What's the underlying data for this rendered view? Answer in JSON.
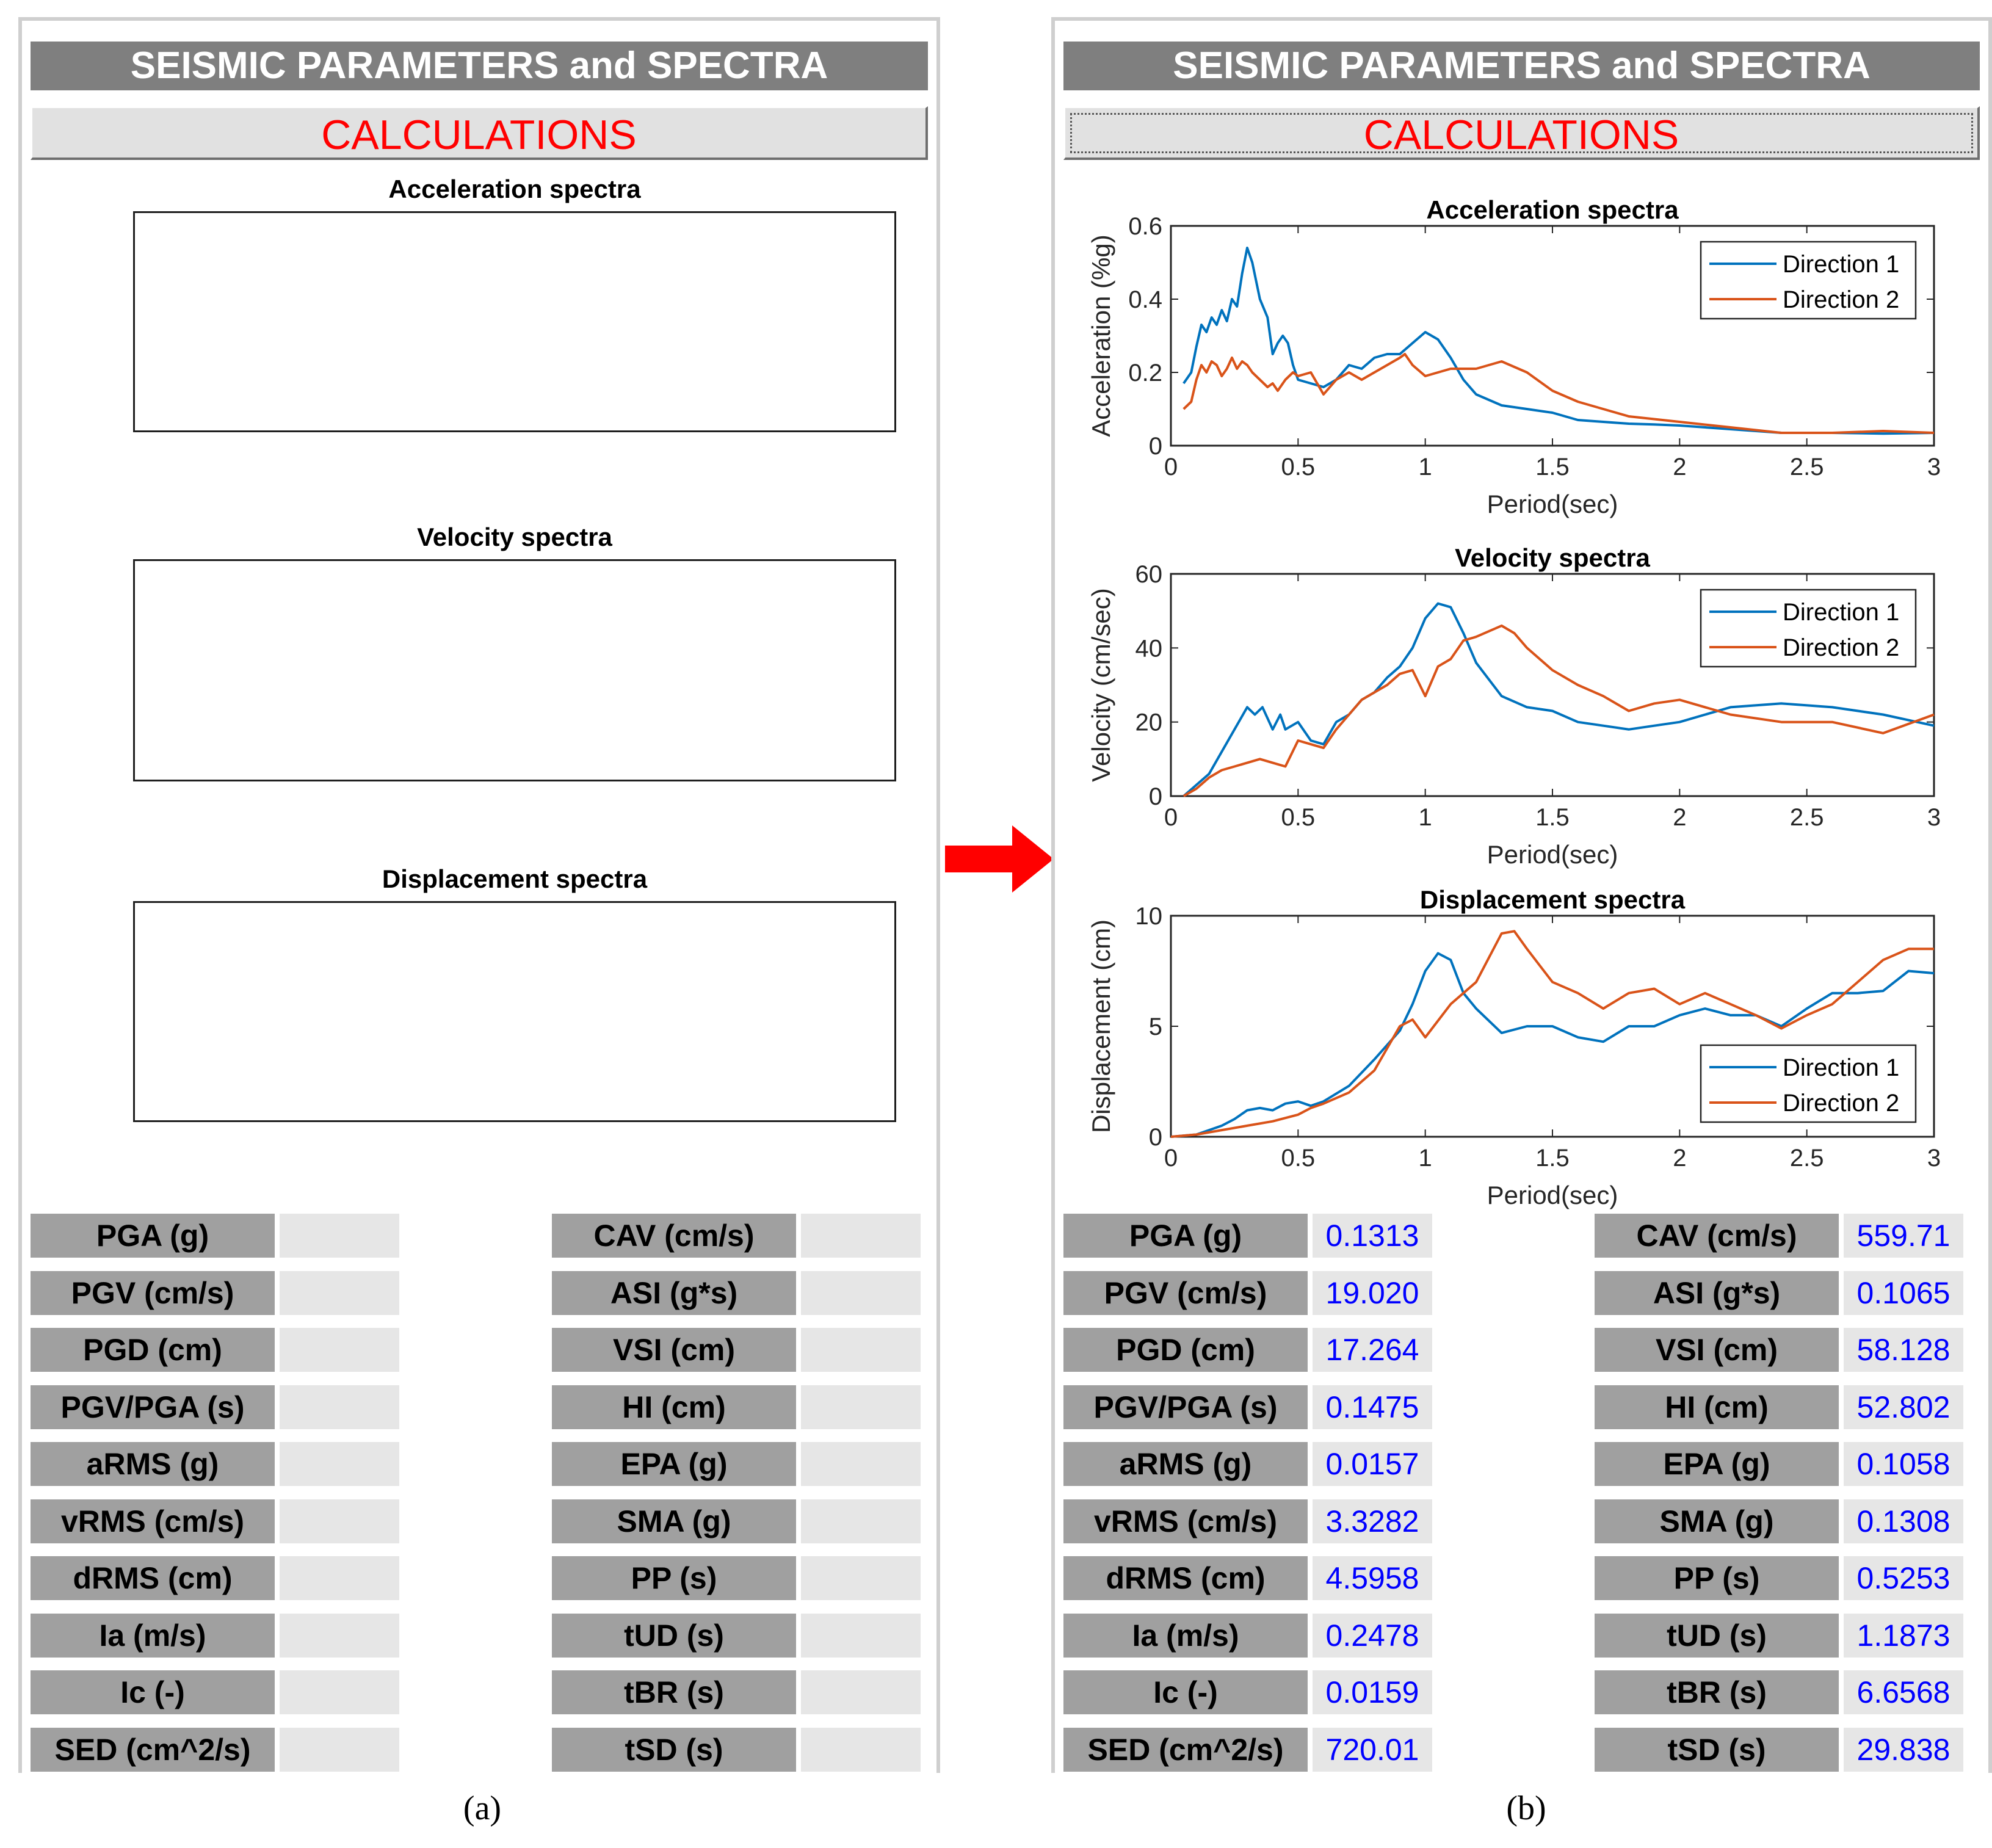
{
  "title": "SEISMIC PARAMETERS and SPECTRA",
  "calculate_label": "CALCULATIONS",
  "plots": [
    {
      "title": "Acceleration spectra"
    },
    {
      "title": "Velocity spectra"
    },
    {
      "title": "Displacement spectra"
    }
  ],
  "params_left": [
    {
      "label": "PGA (g)",
      "value": "0.1313"
    },
    {
      "label": "PGV (cm/s)",
      "value": "19.020"
    },
    {
      "label": "PGD (cm)",
      "value": "17.264"
    },
    {
      "label": "PGV/PGA (s)",
      "value": "0.1475"
    },
    {
      "label": "aRMS (g)",
      "value": "0.0157"
    },
    {
      "label": "vRMS (cm/s)",
      "value": "3.3282"
    },
    {
      "label": "dRMS (cm)",
      "value": "4.5958"
    },
    {
      "label": "Ia (m/s)",
      "value": "0.2478"
    },
    {
      "label": "Ic (-)",
      "value": "0.0159"
    },
    {
      "label": "SED (cm^2/s)",
      "value": "720.01"
    }
  ],
  "params_right": [
    {
      "label": "CAV (cm/s)",
      "value": "559.71"
    },
    {
      "label": "ASI (g*s)",
      "value": "0.1065"
    },
    {
      "label": "VSI (cm)",
      "value": "58.128"
    },
    {
      "label": "HI (cm)",
      "value": "52.802"
    },
    {
      "label": "EPA (g)",
      "value": "0.1058"
    },
    {
      "label": "SMA (g)",
      "value": "0.1308"
    },
    {
      "label": "PP (s)",
      "value": "0.5253"
    },
    {
      "label": "tUD (s)",
      "value": "1.1873"
    },
    {
      "label": "tBR (s)",
      "value": "6.6568"
    },
    {
      "label": "tSD (s)",
      "value": "29.838"
    }
  ],
  "captions": {
    "a": "(a)",
    "b": "(b)"
  },
  "colors": {
    "direction1": "#0072bd",
    "direction2": "#d95319",
    "arrow": "#ff0000"
  },
  "chart_data": [
    {
      "type": "line",
      "title": "Acceleration spectra",
      "xlabel": "Period(sec)",
      "ylabel": "Acceleration (%g)",
      "xlim": [
        0,
        3
      ],
      "ylim": [
        0,
        0.6
      ],
      "xticks": [
        "0",
        "0.5",
        "1",
        "1.5",
        "2",
        "2.5",
        "3"
      ],
      "yticks": [
        "0",
        "0.2",
        "0.4",
        "0.6"
      ],
      "legend": "top-right",
      "series": [
        {
          "name": "Direction 1",
          "x": [
            0.05,
            0.08,
            0.1,
            0.12,
            0.14,
            0.16,
            0.18,
            0.2,
            0.22,
            0.24,
            0.26,
            0.28,
            0.3,
            0.32,
            0.35,
            0.38,
            0.4,
            0.42,
            0.44,
            0.46,
            0.48,
            0.5,
            0.55,
            0.6,
            0.65,
            0.7,
            0.75,
            0.8,
            0.85,
            0.9,
            0.95,
            1.0,
            1.05,
            1.1,
            1.15,
            1.2,
            1.3,
            1.4,
            1.5,
            1.6,
            1.7,
            1.8,
            1.9,
            2.0,
            2.2,
            2.4,
            2.6,
            2.8,
            3.0
          ],
          "y": [
            0.17,
            0.2,
            0.27,
            0.33,
            0.31,
            0.35,
            0.33,
            0.37,
            0.34,
            0.4,
            0.38,
            0.47,
            0.54,
            0.5,
            0.4,
            0.35,
            0.25,
            0.28,
            0.3,
            0.28,
            0.22,
            0.18,
            0.17,
            0.16,
            0.18,
            0.22,
            0.21,
            0.24,
            0.25,
            0.25,
            0.28,
            0.31,
            0.29,
            0.24,
            0.18,
            0.14,
            0.11,
            0.1,
            0.09,
            0.07,
            0.065,
            0.06,
            0.058,
            0.055,
            0.045,
            0.035,
            0.035,
            0.033,
            0.035
          ]
        },
        {
          "name": "Direction 2",
          "x": [
            0.05,
            0.08,
            0.1,
            0.12,
            0.14,
            0.16,
            0.18,
            0.2,
            0.22,
            0.24,
            0.26,
            0.28,
            0.3,
            0.32,
            0.35,
            0.38,
            0.4,
            0.42,
            0.45,
            0.48,
            0.5,
            0.55,
            0.6,
            0.65,
            0.7,
            0.75,
            0.8,
            0.85,
            0.9,
            0.92,
            0.95,
            1.0,
            1.05,
            1.1,
            1.15,
            1.2,
            1.25,
            1.3,
            1.4,
            1.5,
            1.6,
            1.7,
            1.8,
            2.0,
            2.2,
            2.4,
            2.6,
            2.8,
            3.0
          ],
          "y": [
            0.1,
            0.12,
            0.18,
            0.22,
            0.2,
            0.23,
            0.22,
            0.19,
            0.21,
            0.24,
            0.21,
            0.23,
            0.22,
            0.2,
            0.18,
            0.16,
            0.17,
            0.15,
            0.18,
            0.2,
            0.19,
            0.2,
            0.14,
            0.18,
            0.2,
            0.18,
            0.2,
            0.22,
            0.24,
            0.25,
            0.22,
            0.19,
            0.2,
            0.21,
            0.21,
            0.21,
            0.22,
            0.23,
            0.2,
            0.15,
            0.12,
            0.1,
            0.08,
            0.065,
            0.05,
            0.035,
            0.035,
            0.04,
            0.035
          ]
        }
      ]
    },
    {
      "type": "line",
      "title": "Velocity spectra",
      "xlabel": "Period(sec)",
      "ylabel": "Velocity (cm/sec)",
      "xlim": [
        0,
        3
      ],
      "ylim": [
        0,
        60
      ],
      "xticks": [
        "0",
        "0.5",
        "1",
        "1.5",
        "2",
        "2.5",
        "3"
      ],
      "yticks": [
        "0",
        "20",
        "40",
        "60"
      ],
      "legend": "top-right",
      "series": [
        {
          "name": "Direction 1",
          "x": [
            0.05,
            0.1,
            0.15,
            0.2,
            0.25,
            0.3,
            0.33,
            0.36,
            0.4,
            0.43,
            0.45,
            0.5,
            0.55,
            0.6,
            0.65,
            0.7,
            0.75,
            0.8,
            0.85,
            0.9,
            0.95,
            1.0,
            1.05,
            1.1,
            1.15,
            1.2,
            1.3,
            1.4,
            1.5,
            1.6,
            1.7,
            1.8,
            1.9,
            2.0,
            2.2,
            2.4,
            2.6,
            2.8,
            3.0
          ],
          "y": [
            0,
            3,
            6,
            12,
            18,
            24,
            22,
            24,
            18,
            22,
            18,
            20,
            15,
            14,
            20,
            22,
            26,
            28,
            32,
            35,
            40,
            48,
            52,
            51,
            44,
            36,
            27,
            24,
            23,
            20,
            19,
            18,
            19,
            20,
            24,
            25,
            24,
            22,
            19
          ]
        },
        {
          "name": "Direction 2",
          "x": [
            0.05,
            0.1,
            0.15,
            0.2,
            0.25,
            0.3,
            0.35,
            0.4,
            0.45,
            0.5,
            0.55,
            0.6,
            0.65,
            0.7,
            0.75,
            0.8,
            0.85,
            0.9,
            0.95,
            1.0,
            1.05,
            1.1,
            1.15,
            1.2,
            1.3,
            1.35,
            1.4,
            1.5,
            1.6,
            1.7,
            1.8,
            1.9,
            2.0,
            2.2,
            2.4,
            2.6,
            2.8,
            3.0
          ],
          "y": [
            0,
            2,
            5,
            7,
            8,
            9,
            10,
            9,
            8,
            15,
            14,
            13,
            18,
            22,
            26,
            28,
            30,
            33,
            34,
            27,
            35,
            37,
            42,
            43,
            46,
            44,
            40,
            34,
            30,
            27,
            23,
            25,
            26,
            22,
            20,
            20,
            17,
            22
          ]
        }
      ]
    },
    {
      "type": "line",
      "title": "Displacement spectra",
      "xlabel": "Period(sec)",
      "ylabel": "Displacement (cm)",
      "xlim": [
        0,
        3
      ],
      "ylim": [
        0,
        10
      ],
      "xticks": [
        "0",
        "0.5",
        "1",
        "1.5",
        "2",
        "2.5",
        "3"
      ],
      "yticks": [
        "0",
        "5",
        "10"
      ],
      "legend": "bottom-right",
      "series": [
        {
          "name": "Direction 1",
          "x": [
            0,
            0.1,
            0.2,
            0.25,
            0.3,
            0.35,
            0.4,
            0.45,
            0.5,
            0.55,
            0.6,
            0.7,
            0.8,
            0.9,
            0.95,
            1.0,
            1.05,
            1.1,
            1.15,
            1.2,
            1.3,
            1.4,
            1.5,
            1.6,
            1.7,
            1.8,
            1.9,
            2.0,
            2.1,
            2.2,
            2.3,
            2.4,
            2.5,
            2.6,
            2.7,
            2.8,
            2.9,
            3.0
          ],
          "y": [
            0,
            0.1,
            0.5,
            0.8,
            1.2,
            1.3,
            1.2,
            1.5,
            1.6,
            1.4,
            1.6,
            2.3,
            3.5,
            4.8,
            6.0,
            7.5,
            8.3,
            8.0,
            6.5,
            5.8,
            4.7,
            5.0,
            5.0,
            4.5,
            4.3,
            5.0,
            5.0,
            5.5,
            5.8,
            5.5,
            5.5,
            5.0,
            5.8,
            6.5,
            6.5,
            6.6,
            7.5,
            7.4
          ]
        },
        {
          "name": "Direction 2",
          "x": [
            0,
            0.1,
            0.2,
            0.3,
            0.4,
            0.5,
            0.55,
            0.6,
            0.7,
            0.8,
            0.9,
            0.95,
            1.0,
            1.1,
            1.2,
            1.3,
            1.35,
            1.4,
            1.5,
            1.6,
            1.7,
            1.8,
            1.9,
            2.0,
            2.1,
            2.2,
            2.3,
            2.4,
            2.5,
            2.6,
            2.7,
            2.8,
            2.9,
            3.0
          ],
          "y": [
            0,
            0.1,
            0.3,
            0.5,
            0.7,
            1.0,
            1.3,
            1.5,
            2.0,
            3.0,
            5.0,
            5.3,
            4.5,
            6.0,
            7.0,
            9.2,
            9.3,
            8.5,
            7.0,
            6.5,
            5.8,
            6.5,
            6.7,
            6.0,
            6.5,
            6.0,
            5.5,
            4.9,
            5.5,
            6.0,
            7.0,
            8.0,
            8.5,
            8.5
          ]
        }
      ]
    }
  ]
}
